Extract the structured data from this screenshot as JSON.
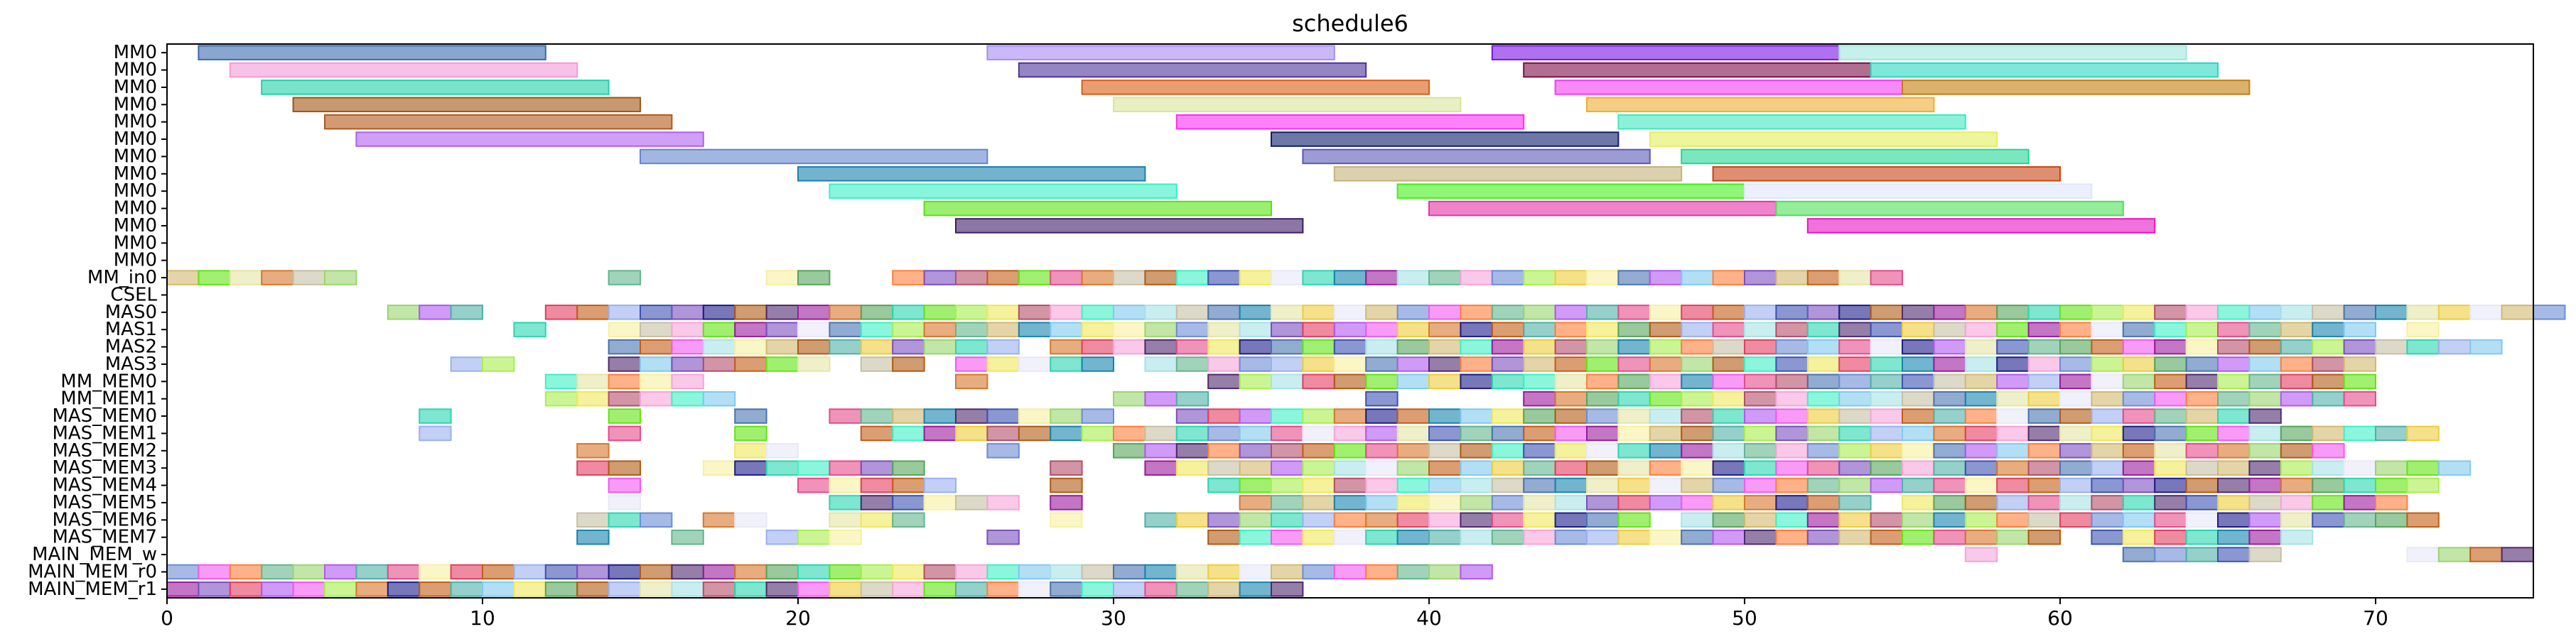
{
  "chart_data": {
    "type": "gantt",
    "title": "schedule6",
    "xlabel": "",
    "ylabel": "",
    "xlim": [
      0,
      75
    ],
    "xticks": [
      0,
      10,
      20,
      30,
      40,
      50,
      60,
      70
    ],
    "rows": [
      "MM0",
      "MM0",
      "MM0",
      "MM0",
      "MM0",
      "MM0",
      "MM0",
      "MM0",
      "MM0",
      "MM0",
      "MM0",
      "MM0",
      "MM0",
      "MM_in0",
      "CSEL",
      "MAS0",
      "MAS1",
      "MAS2",
      "MAS3",
      "MM_MEM0",
      "MM_MEM1",
      "MAS_MEM0",
      "MAS_MEM1",
      "MAS_MEM2",
      "MAS_MEM3",
      "MAS_MEM4",
      "MAS_MEM5",
      "MAS_MEM6",
      "MAS_MEM7",
      "MAIN_MEM_w",
      "MAIN_MEM_r0",
      "MAIN_MEM_r1"
    ],
    "palette": [
      "#4a73b0",
      "#f6a4d8",
      "#2ad6b0",
      "#b05a12",
      "#c35d16",
      "#b058f0",
      "#6c8cd6",
      "#1584ad",
      "#3ef0c4",
      "#62e412",
      "#4e2a6e",
      "#9ab0ee",
      "#4fb0a7",
      "#f458f0",
      "#e5e5a5",
      "#80c9ef",
      "#a9ee4e",
      "#9b1a9b",
      "#3c52b3",
      "#e44b8b",
      "#ff7f3a",
      "#edcd3a",
      "#a7e2e6",
      "#f0e85a",
      "#d7772c",
      "#7b4fc0",
      "#f6f0a0",
      "#63b58d",
      "#e8e8f8",
      "#c6bfa4",
      "#b44e6a",
      "#55a55a",
      "#1d1d8a",
      "#e33e60",
      "#9ad66d",
      "#d2b96e"
    ],
    "alpha": 0.6,
    "bars": [
      {
        "row": 0,
        "start": 1,
        "end": 12,
        "color": "#3a6aaf"
      },
      {
        "row": 0,
        "start": 26,
        "end": 37,
        "color": "#a78af5"
      },
      {
        "row": 0,
        "start": 42,
        "end": 53,
        "color": "#7b12e6"
      },
      {
        "row": 0,
        "start": 53,
        "end": 64,
        "color": "#9fe6dd"
      },
      {
        "row": 1,
        "start": 2,
        "end": 13,
        "color": "#f49ad8"
      },
      {
        "row": 1,
        "start": 27,
        "end": 38,
        "color": "#4f3499"
      },
      {
        "row": 1,
        "start": 43,
        "end": 54,
        "color": "#7d0e48"
      },
      {
        "row": 1,
        "start": 54,
        "end": 65,
        "color": "#2ad7c2"
      },
      {
        "row": 2,
        "start": 3,
        "end": 14,
        "color": "#22d0aa"
      },
      {
        "row": 2,
        "start": 29,
        "end": 40,
        "color": "#d85e14"
      },
      {
        "row": 2,
        "start": 44,
        "end": 55,
        "color": "#f43cf2"
      },
      {
        "row": 2,
        "start": 55,
        "end": 66,
        "color": "#c37d0e"
      },
      {
        "row": 3,
        "start": 4,
        "end": 15,
        "color": "#a15512"
      },
      {
        "row": 3,
        "start": 30,
        "end": 41,
        "color": "#d8e59a"
      },
      {
        "row": 3,
        "start": 45,
        "end": 56,
        "color": "#edae32"
      },
      {
        "row": 4,
        "start": 5,
        "end": 16,
        "color": "#b4581a"
      },
      {
        "row": 4,
        "start": 32,
        "end": 43,
        "color": "#fb2ef5"
      },
      {
        "row": 4,
        "start": 46,
        "end": 57,
        "color": "#3de9c0"
      },
      {
        "row": 5,
        "start": 6,
        "end": 17,
        "color": "#b05ff0"
      },
      {
        "row": 5,
        "start": 35,
        "end": 46,
        "color": "#0e1e6a"
      },
      {
        "row": 5,
        "start": 47,
        "end": 58,
        "color": "#e4ef5c"
      },
      {
        "row": 6,
        "start": 15,
        "end": 26,
        "color": "#6486cf"
      },
      {
        "row": 6,
        "start": 36,
        "end": 47,
        "color": "#5a58b6"
      },
      {
        "row": 6,
        "start": 48,
        "end": 59,
        "color": "#22d795"
      },
      {
        "row": 7,
        "start": 20,
        "end": 31,
        "color": "#1880ad"
      },
      {
        "row": 7,
        "start": 37,
        "end": 48,
        "color": "#c5b27a"
      },
      {
        "row": 7,
        "start": 49,
        "end": 60,
        "color": "#c84412"
      },
      {
        "row": 8,
        "start": 21,
        "end": 32,
        "color": "#3af0c4"
      },
      {
        "row": 8,
        "start": 39,
        "end": 50,
        "color": "#44f01a"
      },
      {
        "row": 8,
        "start": 50,
        "end": 61,
        "color": "#dfe6fa"
      },
      {
        "row": 9,
        "start": 24,
        "end": 35,
        "color": "#58e410"
      },
      {
        "row": 9,
        "start": 40,
        "end": 51,
        "color": "#e632a8"
      },
      {
        "row": 9,
        "start": 51,
        "end": 62,
        "color": "#4ee058"
      },
      {
        "row": 10,
        "start": 25,
        "end": 36,
        "color": "#3e1d66"
      },
      {
        "row": 10,
        "start": 52,
        "end": 63,
        "color": "#e814c4"
      }
    ],
    "segments": [
      {
        "row": 13,
        "ranges": [
          [
            0,
            6
          ],
          [
            14,
            15
          ],
          [
            19,
            21
          ],
          [
            23,
            36
          ],
          [
            36,
            55
          ]
        ]
      },
      {
        "row": 15,
        "ranges": [
          [
            7,
            10
          ],
          [
            12,
            76
          ]
        ]
      },
      {
        "row": 16,
        "ranges": [
          [
            11,
            12
          ],
          [
            14,
            25
          ],
          [
            25,
            54
          ],
          [
            54,
            70
          ],
          [
            71,
            72
          ]
        ]
      },
      {
        "row": 17,
        "ranges": [
          [
            14,
            27
          ],
          [
            28,
            44
          ],
          [
            44,
            74
          ]
        ]
      },
      {
        "row": 18,
        "ranges": [
          [
            9,
            11
          ],
          [
            14,
            21
          ],
          [
            22,
            24
          ],
          [
            25,
            30
          ],
          [
            31,
            70
          ]
        ]
      },
      {
        "row": 19,
        "ranges": [
          [
            12,
            17
          ],
          [
            25,
            26
          ],
          [
            33,
            39
          ],
          [
            39,
            70
          ]
        ]
      },
      {
        "row": 20,
        "ranges": [
          [
            12,
            18
          ],
          [
            30,
            33
          ],
          [
            38,
            39
          ],
          [
            43,
            70
          ]
        ]
      },
      {
        "row": 21,
        "ranges": [
          [
            8,
            9
          ],
          [
            14,
            15
          ],
          [
            18,
            19
          ],
          [
            21,
            30
          ],
          [
            32,
            67
          ]
        ]
      },
      {
        "row": 22,
        "ranges": [
          [
            8,
            9
          ],
          [
            14,
            15
          ],
          [
            18,
            19
          ],
          [
            22,
            72
          ]
        ]
      },
      {
        "row": 23,
        "ranges": [
          [
            13,
            14
          ],
          [
            18,
            20
          ],
          [
            26,
            27
          ],
          [
            30,
            69
          ]
        ]
      },
      {
        "row": 24,
        "ranges": [
          [
            13,
            15
          ],
          [
            17,
            24
          ],
          [
            28,
            29
          ],
          [
            31,
            73
          ]
        ]
      },
      {
        "row": 25,
        "ranges": [
          [
            14,
            15
          ],
          [
            20,
            25
          ],
          [
            28,
            29
          ],
          [
            33,
            72
          ]
        ]
      },
      {
        "row": 26,
        "ranges": [
          [
            14,
            15
          ],
          [
            21,
            27
          ],
          [
            28,
            29
          ],
          [
            34,
            54
          ],
          [
            55,
            71
          ]
        ]
      },
      {
        "row": 27,
        "ranges": [
          [
            13,
            16
          ],
          [
            17,
            19
          ],
          [
            21,
            24
          ],
          [
            28,
            29
          ],
          [
            31,
            47
          ],
          [
            48,
            72
          ]
        ]
      },
      {
        "row": 28,
        "ranges": [
          [
            13,
            14
          ],
          [
            16,
            17
          ],
          [
            19,
            22
          ],
          [
            26,
            27
          ],
          [
            33,
            60
          ],
          [
            61,
            68
          ]
        ]
      },
      {
        "row": 29,
        "ranges": [
          [
            57,
            58
          ],
          [
            62,
            67
          ],
          [
            71,
            75
          ]
        ]
      },
      {
        "row": 30,
        "ranges": [
          [
            0,
            42
          ]
        ]
      },
      {
        "row": 31,
        "ranges": [
          [
            0,
            36
          ]
        ]
      }
    ]
  }
}
